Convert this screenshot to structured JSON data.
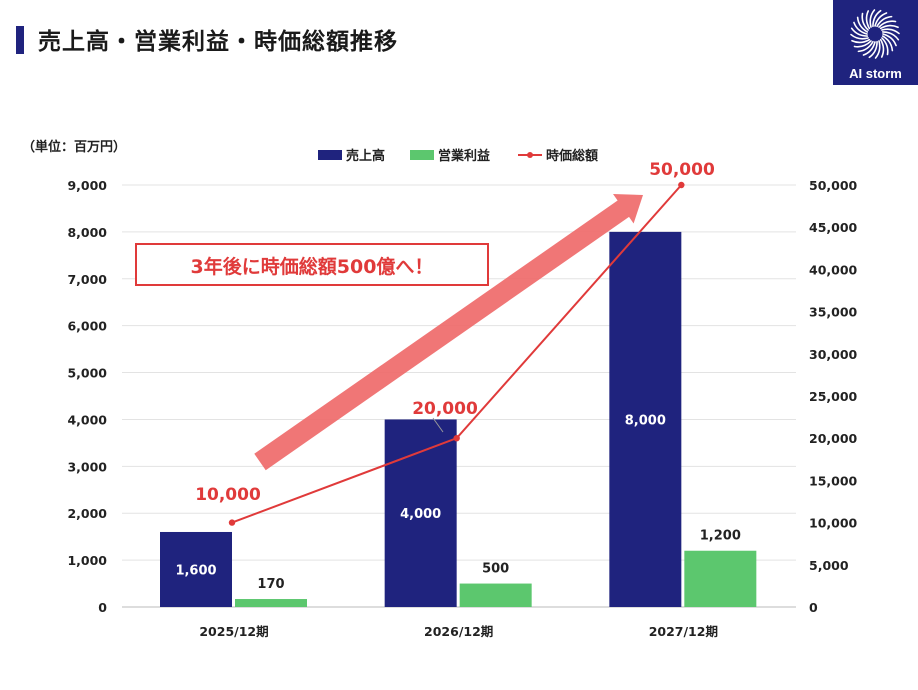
{
  "header": {
    "title": "売上高・営業利益・時価総額推移",
    "logo_text": "AI storm",
    "unit_label": "（単位：百万円）"
  },
  "colors": {
    "revenue": "#1f237e",
    "operating_profit": "#5cc76e",
    "market_cap": "#e03a3a",
    "arrow": "#ef6a6a",
    "accent_red": "#e03a3a"
  },
  "chart_data": {
    "type": "bar",
    "categories": [
      "2025/12期",
      "2026/12期",
      "2027/12期"
    ],
    "series": [
      {
        "name": "売上高",
        "type": "bar",
        "axis": "left",
        "values": [
          1600,
          4000,
          8000
        ],
        "labels": [
          "1,600",
          "4,000",
          "8,000"
        ]
      },
      {
        "name": "営業利益",
        "type": "bar",
        "axis": "left",
        "values": [
          170,
          500,
          1200
        ],
        "labels": [
          "170",
          "500",
          "1,200"
        ]
      },
      {
        "name": "時価総額",
        "type": "line",
        "axis": "right",
        "values": [
          10000,
          20000,
          50000
        ],
        "labels": [
          "10,000",
          "20,000",
          "50,000"
        ]
      }
    ],
    "y_left": {
      "range": [
        0,
        9000
      ],
      "ticks": [
        "0",
        "1,000",
        "2,000",
        "3,000",
        "4,000",
        "5,000",
        "6,000",
        "7,000",
        "8,000",
        "9,000"
      ]
    },
    "y_right": {
      "range": [
        0,
        50000
      ],
      "ticks": [
        "0",
        "5,000",
        "10,000",
        "15,000",
        "20,000",
        "25,000",
        "30,000",
        "35,000",
        "40,000",
        "45,000",
        "50,000"
      ]
    },
    "legend": {
      "position": "top-center",
      "entries": [
        "売上高",
        "営業利益",
        "時価総額"
      ]
    },
    "annotation": "3年後に時価総額500億へ！",
    "gridlines": true
  }
}
